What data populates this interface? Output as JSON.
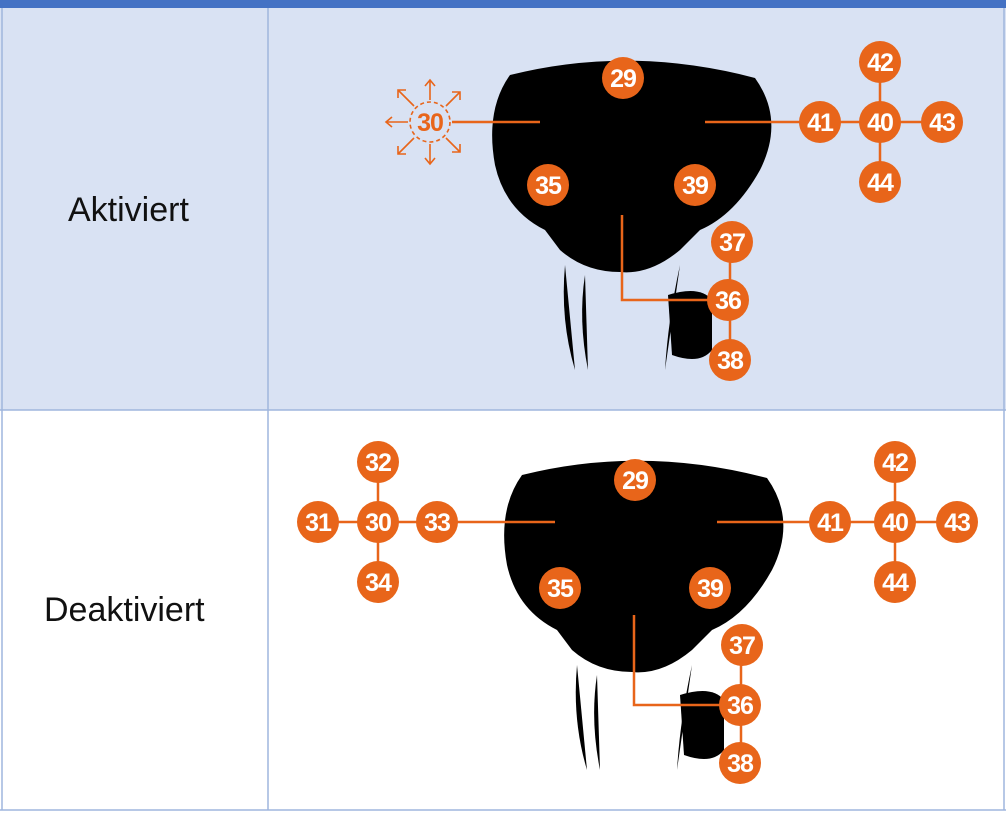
{
  "table": {
    "rows": [
      {
        "label": "Aktiviert",
        "callouts": [
          "30",
          "29",
          "41",
          "40",
          "43",
          "42",
          "44",
          "35",
          "39",
          "37",
          "36",
          "38"
        ]
      },
      {
        "label": "Deaktiviert",
        "callouts": [
          "32",
          "31",
          "30",
          "33",
          "34",
          "29",
          "41",
          "40",
          "43",
          "42",
          "44",
          "35",
          "39",
          "37",
          "36",
          "38"
        ]
      }
    ]
  }
}
